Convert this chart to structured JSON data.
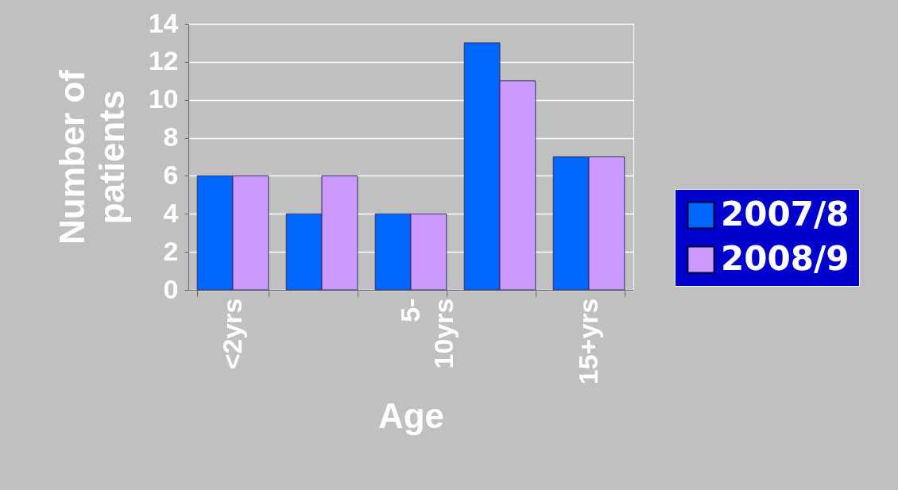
{
  "chart_data": {
    "type": "bar",
    "xlabel": "Age",
    "ylabel": "Number of patients",
    "categories": [
      "<2yrs",
      null,
      "5- 10yrs",
      null,
      "15+yrs"
    ],
    "series": [
      {
        "name": "2007/8",
        "color": "#0066ff",
        "values": [
          6,
          4,
          4,
          13,
          7
        ]
      },
      {
        "name": "2008/9",
        "color": "#cc99ff",
        "values": [
          6,
          6,
          4,
          11,
          7
        ]
      }
    ],
    "ylim": [
      0,
      14
    ],
    "yticks": [
      0,
      2,
      4,
      6,
      8,
      10,
      12,
      14
    ],
    "grid": "y",
    "legend": "right"
  }
}
